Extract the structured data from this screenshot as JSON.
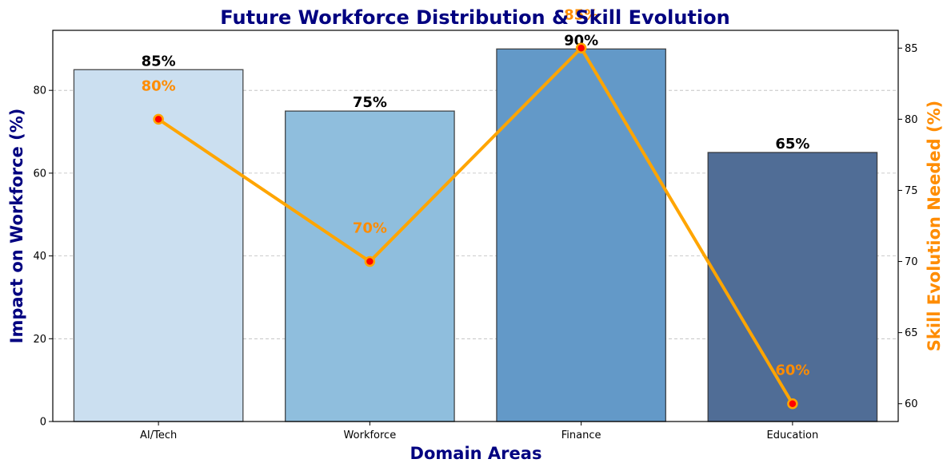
{
  "chart_data": {
    "type": "bar",
    "title": "Future Workforce Distribution & Skill Evolution",
    "xlabel": "Domain Areas",
    "ylabel": "Impact on Workforce (%)",
    "y2label": "Skill Evolution Needed (%)",
    "categories": [
      "AI/Tech",
      "Workforce",
      "Finance",
      "Education"
    ],
    "ylim": [
      0,
      94.5
    ],
    "y2lim": [
      58.75,
      86.25
    ],
    "yticks": [
      0,
      20,
      40,
      60,
      80
    ],
    "y2ticks": [
      60,
      65,
      70,
      75,
      80,
      85
    ],
    "grid": true,
    "series": [
      {
        "chart": "bar",
        "axis": "left",
        "values": [
          85,
          75,
          90,
          65
        ],
        "labels": [
          "85%",
          "75%",
          "90%",
          "65%"
        ],
        "colors": [
          "#cbdff0",
          "#8fbedd",
          "#6399c8",
          "#506d96"
        ]
      },
      {
        "chart": "line",
        "axis": "right",
        "values": [
          80,
          70,
          85,
          60
        ],
        "labels": [
          "80%",
          "70%",
          "85%",
          "60%"
        ],
        "color": "#ffa500",
        "marker_color": "#ff0000",
        "label_color": "#ff8c00"
      }
    ]
  }
}
